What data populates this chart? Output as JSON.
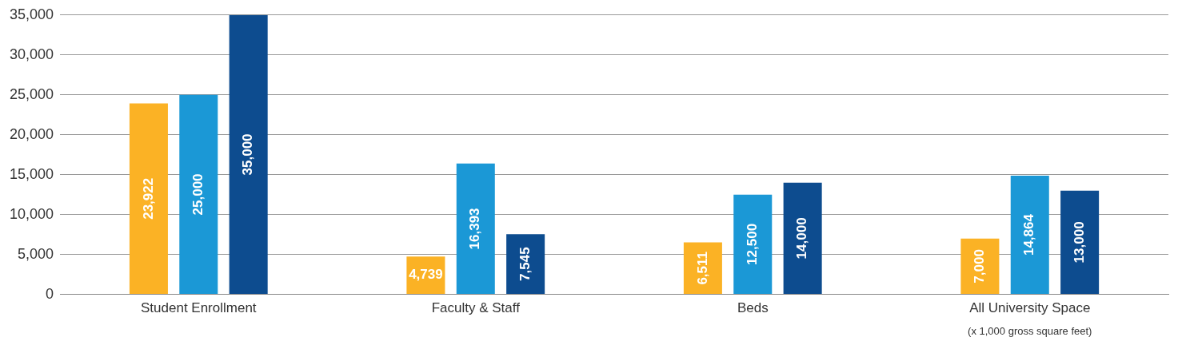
{
  "chart_data": {
    "type": "bar",
    "categories": [
      "Student Enrollment",
      "Faculty & Staff",
      "Beds",
      "All University Space"
    ],
    "series": [
      {
        "color": "#fbb225",
        "values": [
          23922,
          4739,
          6511,
          7000
        ],
        "value_labels": [
          "23,922",
          "4,739",
          "6,511",
          "7,000"
        ]
      },
      {
        "color": "#1b98d6",
        "values": [
          25000,
          16393,
          12500,
          14864
        ],
        "value_labels": [
          "25,000",
          "16,393",
          "12,500",
          "14,864"
        ]
      },
      {
        "color": "#0d4c8f",
        "values": [
          35000,
          7545,
          14000,
          13000
        ],
        "value_labels": [
          "35,000",
          "7,545",
          "14,000",
          "13,000"
        ]
      }
    ],
    "ylim": [
      0,
      35000
    ],
    "yticks": [
      {
        "value": 0,
        "label": "0"
      },
      {
        "value": 5000,
        "label": "5,000"
      },
      {
        "value": 10000,
        "label": "10,000"
      },
      {
        "value": 15000,
        "label": "15,000"
      },
      {
        "value": 20000,
        "label": "20,000"
      },
      {
        "value": 25000,
        "label": "25,000"
      },
      {
        "value": 30000,
        "label": "30,000"
      },
      {
        "value": 35000,
        "label": "35,000"
      }
    ],
    "grid": "y",
    "legend": false,
    "annotations": [
      "(x 1,000 gross square feet)"
    ]
  }
}
